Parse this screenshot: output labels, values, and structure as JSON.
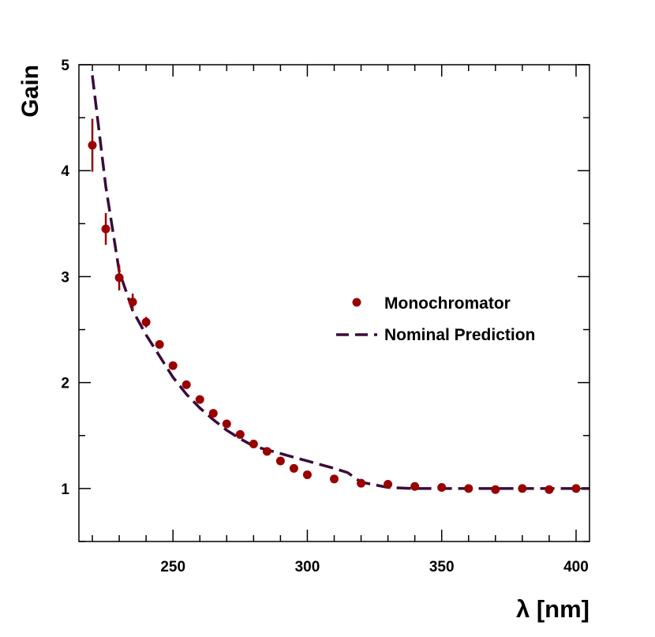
{
  "chart_data": {
    "type": "scatter",
    "xlabel": "λ [nm]",
    "ylabel": "Gain",
    "xlim": [
      215,
      405
    ],
    "ylim": [
      0.5,
      5
    ],
    "x_ticks": [
      250,
      300,
      350,
      400
    ],
    "y_ticks": [
      1,
      2,
      3,
      4,
      5
    ],
    "legend_position": "right-center",
    "grid": false,
    "series": [
      {
        "name": "Monochromator",
        "kind": "points-with-errorbars",
        "color": "#990000",
        "points": [
          {
            "x": 220,
            "y": 4.24,
            "err": 0.25
          },
          {
            "x": 225,
            "y": 3.45,
            "err": 0.15
          },
          {
            "x": 230,
            "y": 2.99,
            "err": 0.12
          },
          {
            "x": 235,
            "y": 2.76,
            "err": 0.08
          },
          {
            "x": 240,
            "y": 2.57,
            "err": 0.05
          },
          {
            "x": 245,
            "y": 2.36,
            "err": 0.03
          },
          {
            "x": 250,
            "y": 2.16,
            "err": 0.02
          },
          {
            "x": 255,
            "y": 1.98,
            "err": 0.01
          },
          {
            "x": 260,
            "y": 1.84,
            "err": 0.01
          },
          {
            "x": 265,
            "y": 1.71,
            "err": 0.01
          },
          {
            "x": 270,
            "y": 1.61,
            "err": 0.01
          },
          {
            "x": 275,
            "y": 1.51,
            "err": 0.01
          },
          {
            "x": 280,
            "y": 1.42,
            "err": 0.01
          },
          {
            "x": 285,
            "y": 1.35,
            "err": 0.01
          },
          {
            "x": 290,
            "y": 1.26,
            "err": 0.01
          },
          {
            "x": 295,
            "y": 1.19,
            "err": 0.01
          },
          {
            "x": 300,
            "y": 1.13,
            "err": 0.01
          },
          {
            "x": 310,
            "y": 1.09,
            "err": 0.01
          },
          {
            "x": 320,
            "y": 1.05,
            "err": 0.01
          },
          {
            "x": 330,
            "y": 1.04,
            "err": 0.01
          },
          {
            "x": 340,
            "y": 1.02,
            "err": 0.01
          },
          {
            "x": 350,
            "y": 1.01,
            "err": 0.01
          },
          {
            "x": 360,
            "y": 1.0,
            "err": 0.01
          },
          {
            "x": 370,
            "y": 0.99,
            "err": 0.01
          },
          {
            "x": 380,
            "y": 1.0,
            "err": 0.01
          },
          {
            "x": 390,
            "y": 0.99,
            "err": 0.01
          },
          {
            "x": 400,
            "y": 1.0,
            "err": 0.01
          }
        ]
      },
      {
        "name": "Nominal Prediction",
        "kind": "dashed-line",
        "color": "#3b0a3a",
        "x": [
          220,
          225,
          230,
          235,
          240,
          245,
          250,
          255,
          260,
          265,
          270,
          275,
          280,
          290,
          300,
          310,
          315,
          320,
          330,
          340,
          350,
          360,
          370,
          380,
          390,
          400,
          405
        ],
        "y": [
          4.9,
          3.85,
          3.05,
          2.68,
          2.45,
          2.25,
          2.05,
          1.89,
          1.76,
          1.65,
          1.55,
          1.47,
          1.4,
          1.33,
          1.26,
          1.19,
          1.15,
          1.06,
          1.01,
          1.0,
          1.0,
          1.0,
          1.0,
          1.0,
          1.0,
          1.0,
          1.0
        ]
      }
    ]
  }
}
